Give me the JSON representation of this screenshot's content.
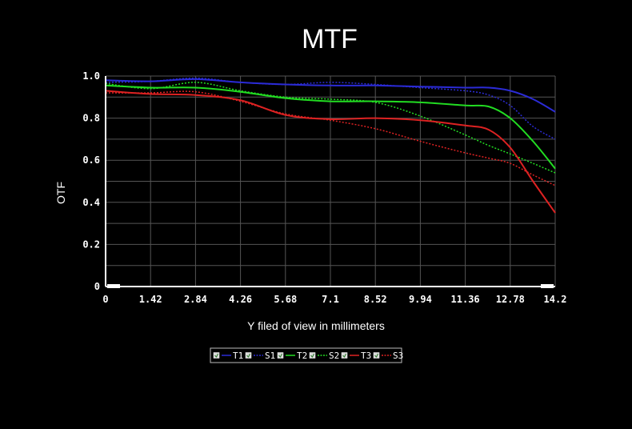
{
  "chart_data": {
    "type": "line",
    "title": "MTF",
    "xlabel": "Y filed of view in millimeters",
    "ylabel": "OTF",
    "xlim": [
      0,
      14.2
    ],
    "ylim": [
      0,
      1.0
    ],
    "x_ticks": [
      "0",
      "1.42",
      "2.84",
      "4.26",
      "5.68",
      "7.1",
      "8.52",
      "9.94",
      "11.36",
      "12.78",
      "14.2"
    ],
    "y_ticks": [
      "0",
      "0.2",
      "0.4",
      "0.6",
      "0.8",
      "1.0"
    ],
    "grid": true,
    "legend_position": "bottom-center",
    "background": "#000000",
    "grid_color": "#555555",
    "series": [
      {
        "name": "T1",
        "color": "#2b2bd6",
        "dash": "solid",
        "x": [
          0,
          1.42,
          2.84,
          4.26,
          5.68,
          7.1,
          8.52,
          9.94,
          11.36,
          12.1,
          12.78,
          13.5,
          14.2
        ],
        "y": [
          0.98,
          0.975,
          0.985,
          0.97,
          0.96,
          0.955,
          0.955,
          0.95,
          0.945,
          0.945,
          0.93,
          0.89,
          0.83
        ]
      },
      {
        "name": "S1",
        "color": "#2b2bd6",
        "dash": "dotted",
        "x": [
          0,
          1.42,
          2.84,
          4.26,
          5.68,
          7.1,
          8.52,
          9.94,
          11.36,
          12.1,
          12.78,
          13.5,
          14.2
        ],
        "y": [
          0.97,
          0.975,
          0.99,
          0.97,
          0.96,
          0.97,
          0.96,
          0.945,
          0.93,
          0.91,
          0.86,
          0.76,
          0.7
        ]
      },
      {
        "name": "T2",
        "color": "#22dd22",
        "dash": "solid",
        "x": [
          0,
          1.42,
          2.84,
          4.26,
          5.68,
          7.1,
          8.52,
          9.94,
          11.36,
          12.1,
          12.78,
          13.5,
          14.2
        ],
        "y": [
          0.955,
          0.945,
          0.945,
          0.925,
          0.895,
          0.88,
          0.88,
          0.875,
          0.86,
          0.855,
          0.8,
          0.69,
          0.56
        ]
      },
      {
        "name": "S2",
        "color": "#22dd22",
        "dash": "dotted",
        "x": [
          0,
          1.42,
          2.84,
          4.26,
          5.68,
          7.1,
          8.52,
          9.94,
          11.36,
          12.1,
          12.78,
          13.5,
          14.2
        ],
        "y": [
          0.965,
          0.94,
          0.97,
          0.93,
          0.9,
          0.89,
          0.875,
          0.81,
          0.72,
          0.67,
          0.63,
          0.585,
          0.54
        ]
      },
      {
        "name": "T3",
        "color": "#dd2222",
        "dash": "solid",
        "x": [
          0,
          1.42,
          2.84,
          4.26,
          5.68,
          7.1,
          8.52,
          9.94,
          11.36,
          12.1,
          12.78,
          13.5,
          14.2
        ],
        "y": [
          0.93,
          0.915,
          0.91,
          0.885,
          0.815,
          0.795,
          0.8,
          0.79,
          0.765,
          0.745,
          0.66,
          0.5,
          0.35
        ]
      },
      {
        "name": "S3",
        "color": "#dd2222",
        "dash": "dotted",
        "x": [
          0,
          1.42,
          2.84,
          4.26,
          5.68,
          7.1,
          8.52,
          9.94,
          11.36,
          12.1,
          12.78,
          13.5,
          14.2
        ],
        "y": [
          0.92,
          0.92,
          0.925,
          0.88,
          0.82,
          0.79,
          0.75,
          0.69,
          0.635,
          0.61,
          0.585,
          0.53,
          0.48
        ]
      }
    ]
  }
}
